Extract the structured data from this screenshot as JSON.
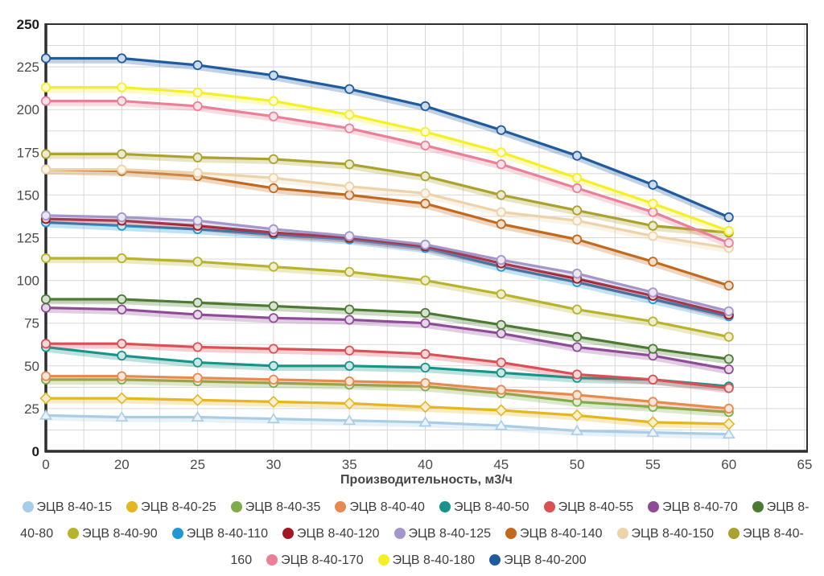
{
  "chart_data": {
    "type": "line",
    "title": "",
    "xlabel": "Производительность, м3/ч",
    "x_categories": [
      0,
      20,
      25,
      30,
      35,
      40,
      45,
      50,
      55,
      60,
      65
    ],
    "ylim": [
      0,
      250
    ],
    "y_tick_step": 25,
    "y_minor_step": 12.5,
    "grid": true,
    "legend_position": "bottom",
    "axis_color": "#2e2e2e",
    "grid_color": "#d8d8d8",
    "tick_label_color": "#4b4b4b",
    "series": [
      {
        "name": "ЭЦВ 8-40-15",
        "color": "#a9cde7",
        "marker": "triangle",
        "values": [
          21,
          20,
          20,
          19,
          18,
          17,
          15,
          12,
          11,
          10
        ]
      },
      {
        "name": "ЭЦВ 8-40-25",
        "color": "#e6b621",
        "marker": "diamond",
        "values": [
          31,
          31,
          30,
          29,
          28,
          26,
          24,
          21,
          17,
          16
        ]
      },
      {
        "name": "ЭЦВ 8-40-35",
        "color": "#7fac49",
        "marker": "circle",
        "values": [
          42,
          42,
          41,
          40,
          39,
          38,
          34,
          29,
          26,
          23
        ]
      },
      {
        "name": "ЭЦВ 8-40-40",
        "color": "#e68a50",
        "marker": "circle",
        "values": [
          44,
          44,
          43,
          42,
          41,
          40,
          36,
          33,
          29,
          25
        ]
      },
      {
        "name": "ЭЦВ 8-40-50",
        "color": "#17948a",
        "marker": "circle",
        "values": [
          61,
          56,
          52,
          50,
          50,
          49,
          46,
          43,
          42,
          38
        ]
      },
      {
        "name": "ЭЦВ 8-40-55",
        "color": "#d95055",
        "marker": "circle",
        "values": [
          63,
          63,
          61,
          60,
          59,
          57,
          52,
          45,
          42,
          37
        ]
      },
      {
        "name": "ЭЦВ 8-40-70",
        "color": "#8e4c96",
        "marker": "circle",
        "values": [
          84,
          83,
          80,
          78,
          77,
          75,
          69,
          61,
          56,
          48
        ]
      },
      {
        "name": "ЭЦВ 8-40-80",
        "color": "#4c7a33",
        "marker": "circle",
        "values": [
          89,
          89,
          87,
          85,
          83,
          81,
          74,
          67,
          60,
          54
        ]
      },
      {
        "name": "ЭЦВ 8-40-90",
        "color": "#b7b32b",
        "marker": "circle",
        "values": [
          113,
          113,
          111,
          108,
          105,
          100,
          92,
          83,
          76,
          67
        ]
      },
      {
        "name": "ЭЦВ 8-40-110",
        "color": "#2297d4",
        "marker": "circle",
        "values": [
          134,
          132,
          130,
          127,
          124,
          119,
          108,
          99,
          89,
          79
        ]
      },
      {
        "name": "ЭЦВ 8-40-120",
        "color": "#a21722",
        "marker": "circle",
        "values": [
          136,
          135,
          132,
          128,
          125,
          120,
          110,
          101,
          91,
          80
        ]
      },
      {
        "name": "ЭЦВ 8-40-125",
        "color": "#a296ca",
        "marker": "circle",
        "values": [
          138,
          137,
          135,
          130,
          126,
          121,
          112,
          104,
          93,
          82
        ]
      },
      {
        "name": "ЭЦВ 8-40-140",
        "color": "#c16a1e",
        "marker": "circle",
        "values": [
          165,
          164,
          161,
          154,
          150,
          145,
          133,
          124,
          111,
          97
        ]
      },
      {
        "name": "ЭЦВ 8-40-150",
        "color": "#edd3a9",
        "marker": "circle",
        "values": [
          165,
          165,
          163,
          160,
          155,
          151,
          140,
          135,
          126,
          119
        ]
      },
      {
        "name": "ЭЦВ 8-40-160",
        "color": "#a9a22c",
        "marker": "circle",
        "values": [
          174,
          174,
          172,
          171,
          168,
          161,
          150,
          141,
          132,
          128
        ]
      },
      {
        "name": "ЭЦВ 8-40-170",
        "color": "#ea7f98",
        "marker": "circle",
        "values": [
          205,
          205,
          202,
          196,
          189,
          179,
          168,
          154,
          140,
          122
        ]
      },
      {
        "name": "ЭЦВ 8-40-180",
        "color": "#f5ef25",
        "marker": "circle",
        "values": [
          213,
          213,
          210,
          205,
          197,
          187,
          175,
          160,
          145,
          129
        ]
      },
      {
        "name": "ЭЦВ 8-40-200",
        "color": "#205c9d",
        "marker": "circle",
        "values": [
          230,
          230,
          226,
          220,
          212,
          202,
          188,
          173,
          156,
          137
        ]
      }
    ]
  }
}
